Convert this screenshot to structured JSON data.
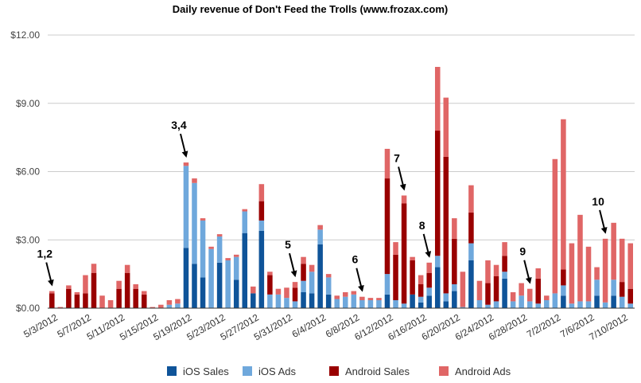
{
  "chart_data": {
    "type": "bar",
    "stacked": true,
    "title": "Daily revenue of Don't Feed the Trolls (www.frozax.com)",
    "xlabel": "",
    "ylabel": "",
    "ylim": [
      0,
      12
    ],
    "yticks": [
      0,
      3,
      6,
      9,
      12
    ],
    "ytick_labels": [
      "$0.00",
      "$3.00",
      "$6.00",
      "$9.00",
      "$12.00"
    ],
    "grid": true,
    "legend_position": "bottom",
    "categories": [
      "5/3/2012",
      "5/4/2012",
      "5/5/2012",
      "5/6/2012",
      "5/7/2012",
      "5/8/2012",
      "5/9/2012",
      "5/10/2012",
      "5/11/2012",
      "5/12/2012",
      "5/13/2012",
      "5/14/2012",
      "5/15/2012",
      "5/16/2012",
      "5/17/2012",
      "5/18/2012",
      "5/19/2012",
      "5/20/2012",
      "5/21/2012",
      "5/22/2012",
      "5/23/2012",
      "5/24/2012",
      "5/25/2012",
      "5/26/2012",
      "5/27/2012",
      "5/28/2012",
      "5/29/2012",
      "5/30/2012",
      "5/31/2012",
      "6/1/2012",
      "6/2/2012",
      "6/3/2012",
      "6/4/2012",
      "6/5/2012",
      "6/6/2012",
      "6/7/2012",
      "6/8/2012",
      "6/9/2012",
      "6/10/2012",
      "6/11/2012",
      "6/12/2012",
      "6/13/2012",
      "6/14/2012",
      "6/15/2012",
      "6/16/2012",
      "6/17/2012",
      "6/18/2012",
      "6/19/2012",
      "6/20/2012",
      "6/21/2012",
      "6/22/2012",
      "6/23/2012",
      "6/24/2012",
      "6/25/2012",
      "6/26/2012",
      "6/27/2012",
      "6/28/2012",
      "6/29/2012",
      "6/30/2012",
      "7/1/2012",
      "7/2/2012",
      "7/3/2012",
      "7/4/2012",
      "7/5/2012",
      "7/6/2012",
      "7/7/2012",
      "7/8/2012",
      "7/9/2012",
      "7/10/2012",
      "7/11/2012"
    ],
    "x_tick_labels": [
      {
        "index": 0,
        "label": "5/3/2012"
      },
      {
        "index": 4,
        "label": "5/7/2012"
      },
      {
        "index": 8,
        "label": "5/11/2012"
      },
      {
        "index": 12,
        "label": "5/15/2012"
      },
      {
        "index": 16,
        "label": "5/19/2012"
      },
      {
        "index": 20,
        "label": "5/23/2012"
      },
      {
        "index": 24,
        "label": "5/27/2012"
      },
      {
        "index": 28,
        "label": "5/31/2012"
      },
      {
        "index": 32,
        "label": "6/4/2012"
      },
      {
        "index": 36,
        "label": "6/8/2012"
      },
      {
        "index": 40,
        "label": "6/12/2012"
      },
      {
        "index": 44,
        "label": "6/16/2012"
      },
      {
        "index": 48,
        "label": "6/20/2012"
      },
      {
        "index": 52,
        "label": "6/24/2012"
      },
      {
        "index": 56,
        "label": "6/28/2012"
      },
      {
        "index": 60,
        "label": "7/2/2012"
      },
      {
        "index": 64,
        "label": "7/6/2012"
      },
      {
        "index": 68,
        "label": "7/10/2012"
      }
    ],
    "series": [
      {
        "name": "iOS Sales",
        "color": "#0f5499",
        "values": [
          0,
          0,
          0,
          0,
          0,
          0,
          0,
          0,
          0,
          0,
          0,
          0,
          0,
          0,
          0,
          0,
          2.65,
          1.95,
          1.35,
          0,
          2.0,
          0,
          1.25,
          3.3,
          0.65,
          3.4,
          0,
          0,
          0,
          0,
          0.7,
          0.65,
          2.8,
          0.6,
          0,
          0,
          0,
          0,
          0,
          0,
          0.6,
          0,
          0,
          0.6,
          0.25,
          0.55,
          1.8,
          0.3,
          0.75,
          0,
          2.1,
          0,
          0,
          0,
          1.3,
          0,
          0,
          0,
          0,
          0,
          0,
          0.55,
          0,
          0,
          0,
          0.55,
          0,
          0.55,
          0,
          0
        ]
      },
      {
        "name": "iOS Ads",
        "color": "#6fa8dc",
        "values": [
          0,
          0,
          0,
          0,
          0,
          0,
          0,
          0,
          0,
          0,
          0,
          0,
          0,
          0,
          0.15,
          0.2,
          3.6,
          3.55,
          2.5,
          2.6,
          1.15,
          2.1,
          1.0,
          0.95,
          0,
          0.45,
          0.6,
          0.6,
          0.45,
          0.3,
          0.5,
          0.95,
          0.65,
          0.75,
          0.4,
          0.5,
          0.6,
          0.35,
          0.35,
          0.35,
          0.9,
          0.35,
          0.2,
          0,
          0.25,
          0.35,
          0.5,
          0.35,
          0.3,
          0.05,
          0.75,
          0.35,
          0.15,
          0.3,
          0.3,
          0.3,
          0.55,
          0.3,
          0.2,
          0.35,
          0.65,
          0.45,
          0.2,
          0.3,
          0.3,
          0.7,
          0.25,
          0.7,
          0.5,
          0.2
        ]
      },
      {
        "name": "Android Sales",
        "color": "#990000",
        "values": [
          0.65,
          0,
          0.85,
          0.6,
          0.65,
          1.55,
          0,
          0,
          0.85,
          1.55,
          0.85,
          0.6,
          0,
          0,
          0,
          0,
          0,
          0,
          0,
          0,
          0,
          0,
          0,
          0,
          0,
          0.85,
          0.85,
          0,
          0,
          0.6,
          0.75,
          0,
          0,
          0,
          0,
          0,
          0,
          0,
          0,
          0,
          4.2,
          2.0,
          4.4,
          1.5,
          0.55,
          0.65,
          5.5,
          6.0,
          2.0,
          0,
          1.35,
          0,
          0.95,
          1.1,
          0.7,
          0,
          0,
          0,
          1.1,
          0,
          0,
          0.7,
          0,
          0,
          0,
          0,
          0,
          0,
          0.65,
          0.65
        ]
      },
      {
        "name": "Android Ads",
        "color": "#e06666",
        "values": [
          0.1,
          0.05,
          0.15,
          0.1,
          0.8,
          0.4,
          0.55,
          0.35,
          0.35,
          0.35,
          0.2,
          0.15,
          0.05,
          0.15,
          0.2,
          0.2,
          0.15,
          0.2,
          0.1,
          0.1,
          0.1,
          0.1,
          0.1,
          0.1,
          0.3,
          0.75,
          0.15,
          0.25,
          0.45,
          0.25,
          0.3,
          0.3,
          0.2,
          0.15,
          0.15,
          0.2,
          0.15,
          0.15,
          0.1,
          0.1,
          1.3,
          0.55,
          0.35,
          0.15,
          0.4,
          0.45,
          2.8,
          2.6,
          0.9,
          1.55,
          1.2,
          0.85,
          1.0,
          0.5,
          0.6,
          0.4,
          0.55,
          0.55,
          0.45,
          0.2,
          5.9,
          6.6,
          2.65,
          3.8,
          2.4,
          0.55,
          2.8,
          2.5,
          1.9,
          2.0
        ]
      }
    ],
    "annotations": [
      {
        "label": "1,2",
        "index": 0
      },
      {
        "label": "3,4",
        "index": 16
      },
      {
        "label": "5",
        "index": 29
      },
      {
        "label": "6",
        "index": 37
      },
      {
        "label": "7",
        "index": 42
      },
      {
        "label": "8",
        "index": 45
      },
      {
        "label": "9",
        "index": 57
      },
      {
        "label": "10",
        "index": 66
      }
    ]
  }
}
